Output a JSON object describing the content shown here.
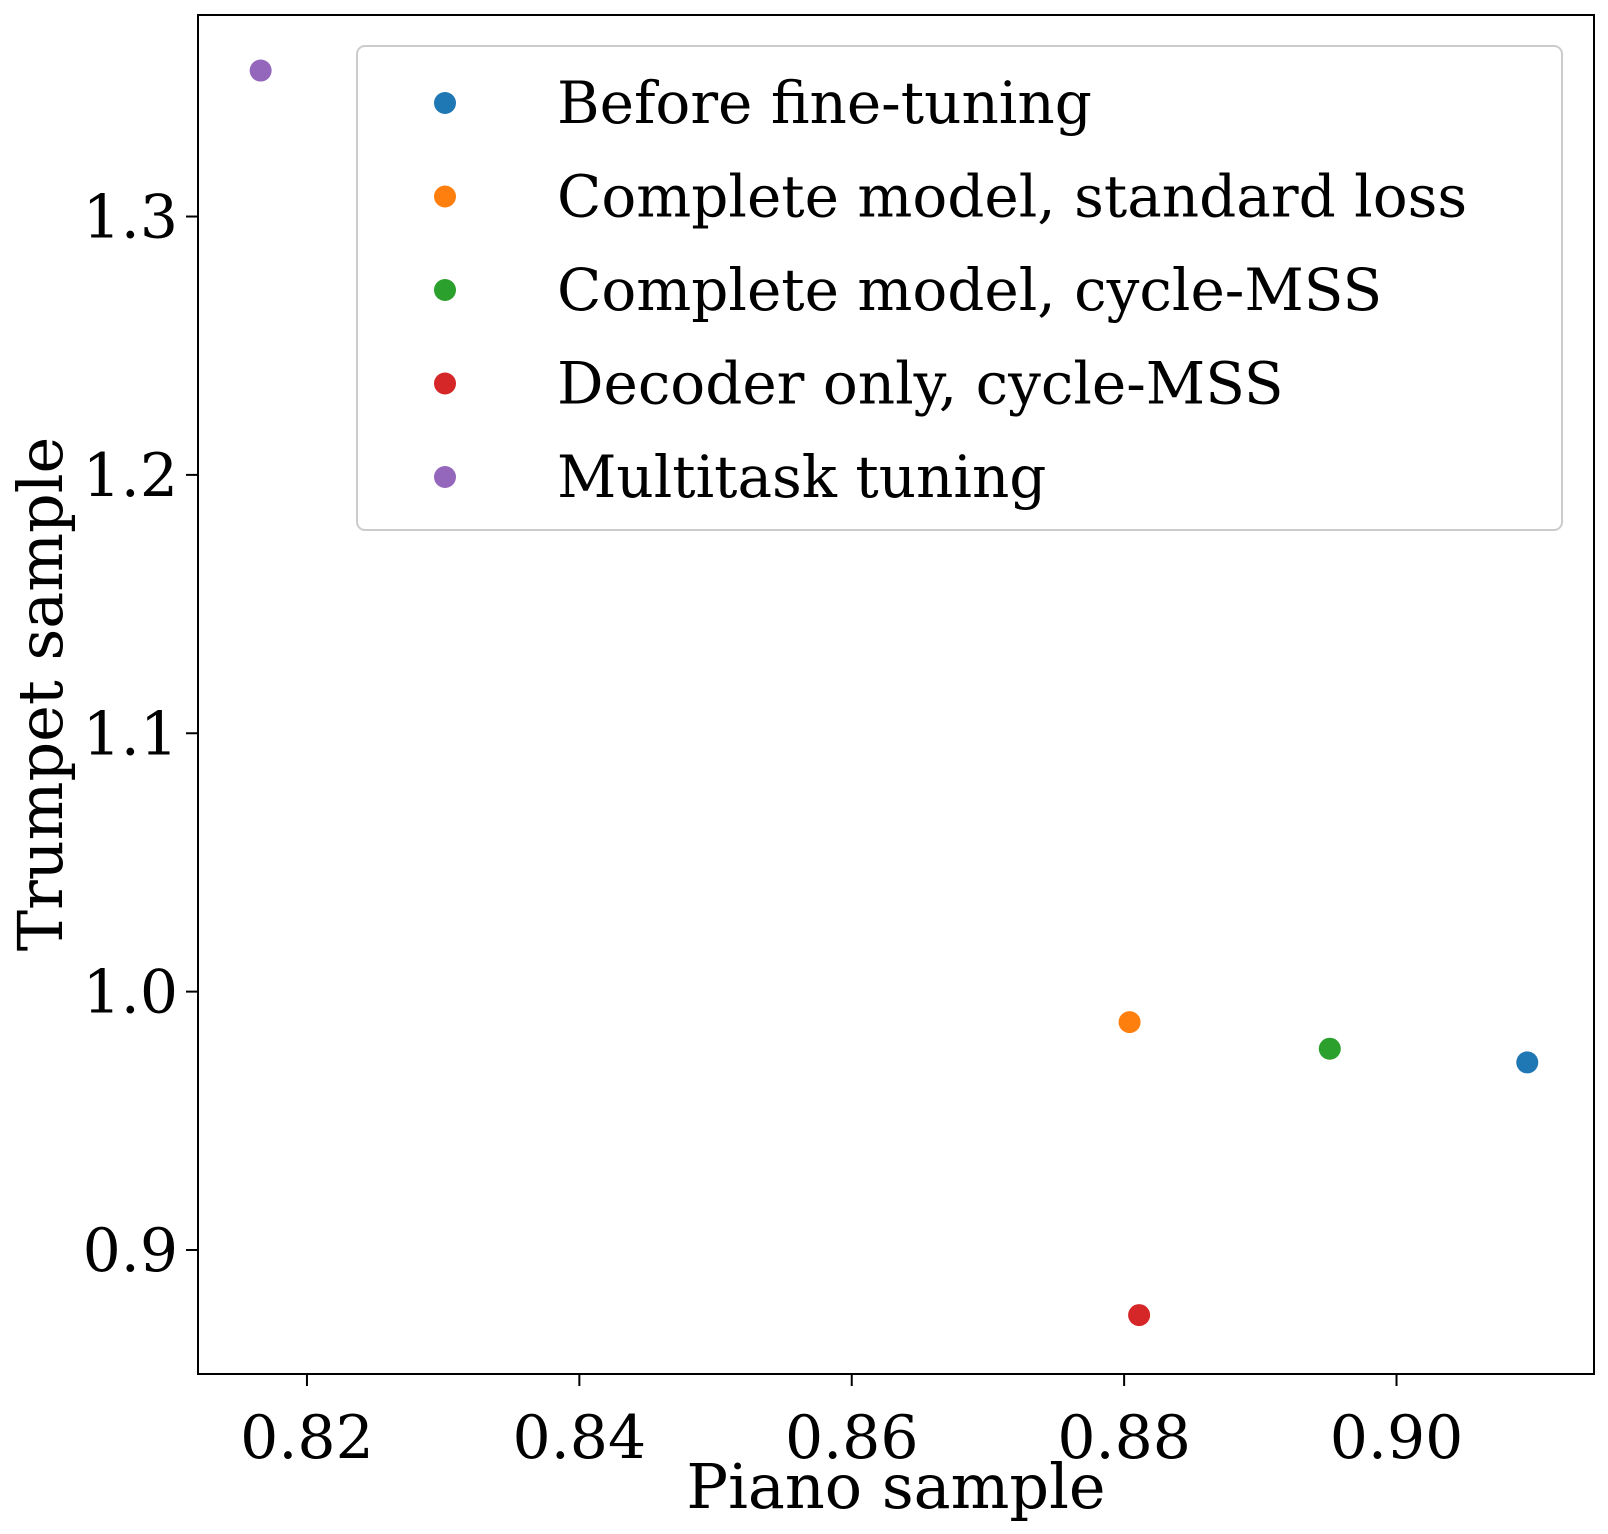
{
  "chart_data": {
    "type": "scatter",
    "xlabel": "Piano sample",
    "ylabel": "Trumpet sample",
    "xlim": [
      0.812,
      0.9145
    ],
    "ylim": [
      0.852,
      1.378
    ],
    "xticks": [
      0.82,
      0.84,
      0.86,
      0.88,
      0.9
    ],
    "xtick_labels": [
      "0.82",
      "0.84",
      "0.86",
      "0.88",
      "0.90"
    ],
    "yticks": [
      0.9,
      1.0,
      1.1,
      1.2,
      1.3
    ],
    "ytick_labels": [
      "0.9",
      "1.0",
      "1.1",
      "1.2",
      "1.3"
    ],
    "grid": false,
    "legend_position": "top-right",
    "series": [
      {
        "name": "Before fine-tuning",
        "color": "#1f77b4",
        "points": [
          {
            "x": 0.9096,
            "y": 0.9726
          }
        ]
      },
      {
        "name": "Complete model, standard loss",
        "color": "#ff7f0e",
        "points": [
          {
            "x": 0.8804,
            "y": 0.9882
          }
        ]
      },
      {
        "name": "Complete model, cycle-MSS",
        "color": "#2ca02c",
        "points": [
          {
            "x": 0.8951,
            "y": 0.9779
          }
        ]
      },
      {
        "name": "Decoder only, cycle-MSS",
        "color": "#d62728",
        "points": [
          {
            "x": 0.8811,
            "y": 0.8748
          }
        ]
      },
      {
        "name": "Multitask tuning",
        "color": "#9467bd",
        "points": [
          {
            "x": 0.8166,
            "y": 1.3565
          }
        ]
      }
    ]
  }
}
